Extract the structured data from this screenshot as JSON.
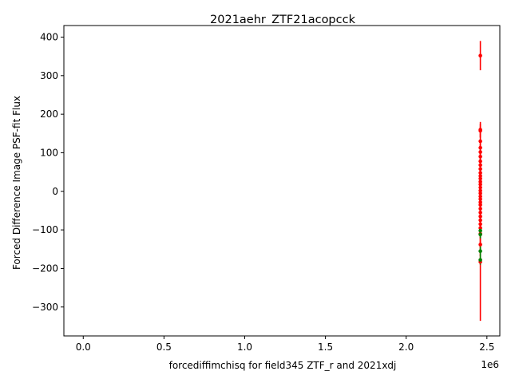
{
  "chart_data": {
    "type": "scatter",
    "title": "2021aehr_ZTF21acopcck",
    "xlabel": "forcediffimchisq for field345 ZTF_r and 2021xdj",
    "ylabel": "Forced Difference Image PSF-fit Flux",
    "x_offset_label": "1e6",
    "xlim": [
      -120000,
      2580000
    ],
    "ylim": [
      -375,
      430
    ],
    "xticks": [
      0,
      500000,
      1000000,
      1500000,
      2000000,
      2500000
    ],
    "xtick_labels": [
      "0.0",
      "0.5",
      "1.0",
      "1.5",
      "2.0",
      "2.5"
    ],
    "yticks": [
      -300,
      -200,
      -100,
      0,
      100,
      200,
      300,
      400
    ],
    "ytick_labels": [
      "−300",
      "−200",
      "−100",
      "0",
      "100",
      "200",
      "300",
      "400"
    ],
    "grid": false,
    "colors": {
      "red_series": "#ff0000",
      "green_series": "#008000"
    },
    "series": [
      {
        "color": "#ff0000",
        "x": [
          2459400,
          2459400,
          2459400,
          2459400,
          2459400,
          2459400,
          2459400,
          2459400,
          2459400,
          2459400,
          2459400,
          2459400,
          2459400,
          2459400,
          2459400,
          2459400,
          2459400,
          2459400,
          2459400,
          2459400,
          2459400,
          2459400,
          2459400,
          2459400,
          2459400,
          2459400,
          2459400,
          2459400,
          2459400,
          2459400,
          2459400
        ],
        "y": [
          352,
          160,
          157,
          130,
          113,
          102,
          90,
          78,
          68,
          58,
          48,
          40,
          33,
          25,
          18,
          10,
          2,
          -5,
          -13,
          -20,
          -28,
          -35,
          -45,
          -55,
          -65,
          -75,
          -85,
          -95,
          -110,
          -138,
          -183
        ],
        "yerr": [
          38,
          20,
          18,
          20,
          22,
          20,
          22,
          20,
          22,
          20,
          22,
          20,
          22,
          20,
          22,
          20,
          22,
          20,
          22,
          20,
          22,
          20,
          22,
          20,
          22,
          20,
          22,
          20,
          25,
          30,
          153
        ]
      },
      {
        "color": "#008000",
        "x": [
          2459400,
          2459400,
          2459400,
          2459400
        ],
        "y": [
          -102,
          -112,
          -155,
          -178
        ],
        "yerr": [
          10,
          10,
          12,
          12
        ]
      }
    ]
  }
}
